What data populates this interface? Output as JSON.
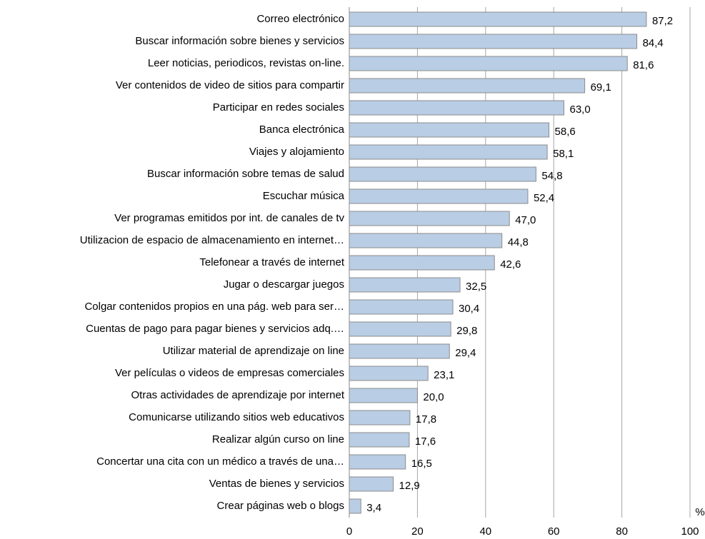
{
  "chart_data": {
    "type": "barh",
    "xlabel": "%",
    "categories": [
      "Correo electrónico",
      "Buscar información sobre bienes y servicios",
      "Leer noticias, periodicos, revistas on-line.",
      "Ver contenidos de video de sitios para compartir",
      "Participar en redes sociales",
      "Banca electrónica",
      "Viajes y alojamiento",
      "Buscar información sobre temas de salud",
      "Escuchar música",
      "Ver programas emitidos por int. de canales de tv",
      "Utilizacion de espacio de almacenamiento en internet…",
      "Telefonear a través de internet",
      "Jugar o descargar juegos",
      "Colgar contenidos propios en una pág. web para ser…",
      "Cuentas de pago para pagar bienes y servicios adq.…",
      "Utilizar material de aprendizaje on line",
      "Ver películas o videos de empresas comerciales",
      "Otras actividades de aprendizaje por internet",
      "Comunicarse utilizando sitios web educativos",
      "Realizar algún curso on line",
      "Concertar una cita con un médico a través de una…",
      "Ventas de bienes y servicios",
      "Crear páginas web o blogs"
    ],
    "values": [
      87.2,
      84.4,
      81.6,
      69.1,
      63.0,
      58.6,
      58.1,
      54.8,
      52.4,
      47.0,
      44.8,
      42.6,
      32.5,
      30.4,
      29.8,
      29.4,
      23.1,
      20.0,
      17.8,
      17.6,
      16.5,
      12.9,
      3.4
    ],
    "value_labels": [
      "87,2",
      "84,4",
      "81,6",
      "69,1",
      "63,0",
      "58,6",
      "58,1",
      "54,8",
      "52,4",
      "47,0",
      "44,8",
      "42,6",
      "32,5",
      "30,4",
      "29,8",
      "29,4",
      "23,1",
      "20,0",
      "17,8",
      "17,6",
      "16,5",
      "12,9",
      "3,4"
    ],
    "color": "#b9cde5",
    "xlim": [
      0,
      100
    ],
    "xticks": [
      0,
      20,
      40,
      60,
      80,
      100
    ],
    "grid": true
  }
}
